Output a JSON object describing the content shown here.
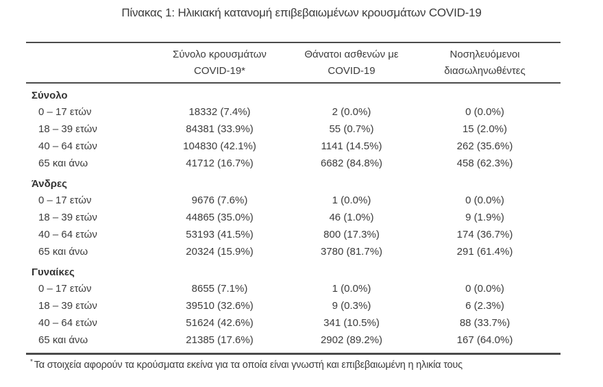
{
  "title": "Πίνακας 1: Ηλικιακή κατανομή επιβεβαιωμένων κρουσμάτων COVID-19",
  "table": {
    "columns": [
      {
        "line1": "Σύνολο κρουσμάτων",
        "line2": "COVID-19*"
      },
      {
        "line1": "Θάνατοι ασθενών με",
        "line2": "COVID-19"
      },
      {
        "line1": "Νοσηλευόμενοι",
        "line2": "διασωληνωθέντες"
      }
    ],
    "sections": [
      {
        "header": "Σύνολο",
        "rows": [
          {
            "label": "0 – 17 ετών",
            "cases": "18332 (7.4%)",
            "deaths": "2 (0.0%)",
            "intubated": "0 (0.0%)"
          },
          {
            "label": "18 – 39 ετών",
            "cases": "84381 (33.9%)",
            "deaths": "55 (0.7%)",
            "intubated": "15 (2.0%)"
          },
          {
            "label": "40 – 64 ετών",
            "cases": "104830 (42.1%)",
            "deaths": "1141 (14.5%)",
            "intubated": "262 (35.6%)"
          },
          {
            "label": "65 και άνω",
            "cases": "41712 (16.7%)",
            "deaths": "6682 (84.8%)",
            "intubated": "458 (62.3%)"
          }
        ]
      },
      {
        "header": "Άνδρες",
        "rows": [
          {
            "label": "0 – 17 ετών",
            "cases": "9676 (7.6%)",
            "deaths": "1 (0.0%)",
            "intubated": "0 (0.0%)"
          },
          {
            "label": "18 – 39 ετών",
            "cases": "44865 (35.0%)",
            "deaths": "46 (1.0%)",
            "intubated": "9 (1.9%)"
          },
          {
            "label": "40 – 64 ετών",
            "cases": "53193 (41.5%)",
            "deaths": "800 (17.3%)",
            "intubated": "174 (36.7%)"
          },
          {
            "label": "65 και άνω",
            "cases": "20324 (15.9%)",
            "deaths": "3780 (81.7%)",
            "intubated": "291 (61.4%)"
          }
        ]
      },
      {
        "header": "Γυναίκες",
        "rows": [
          {
            "label": "0 – 17 ετών",
            "cases": "8655 (7.1%)",
            "deaths": "1 (0.0%)",
            "intubated": "0 (0.0%)"
          },
          {
            "label": "18 – 39 ετών",
            "cases": "39510 (32.6%)",
            "deaths": "9 (0.3%)",
            "intubated": "6 (2.3%)"
          },
          {
            "label": "40 – 64 ετών",
            "cases": "51624 (42.6%)",
            "deaths": "341 (10.5%)",
            "intubated": "88 (33.7%)"
          },
          {
            "label": "65 και άνω",
            "cases": "21385 (17.6%)",
            "deaths": "2902 (89.2%)",
            "intubated": "167 (64.0%)"
          }
        ]
      }
    ],
    "footnote_marker": "*",
    "footnote": "Τα στοιχεία αφορούν τα κρούσματα εκείνα για τα οποία είναι γνωστή και επιβεβαιωμένη η ηλικία τους"
  },
  "colors": {
    "background": "#ffffff",
    "text": "#3b3b3b",
    "rule": "#4a4a4a"
  }
}
